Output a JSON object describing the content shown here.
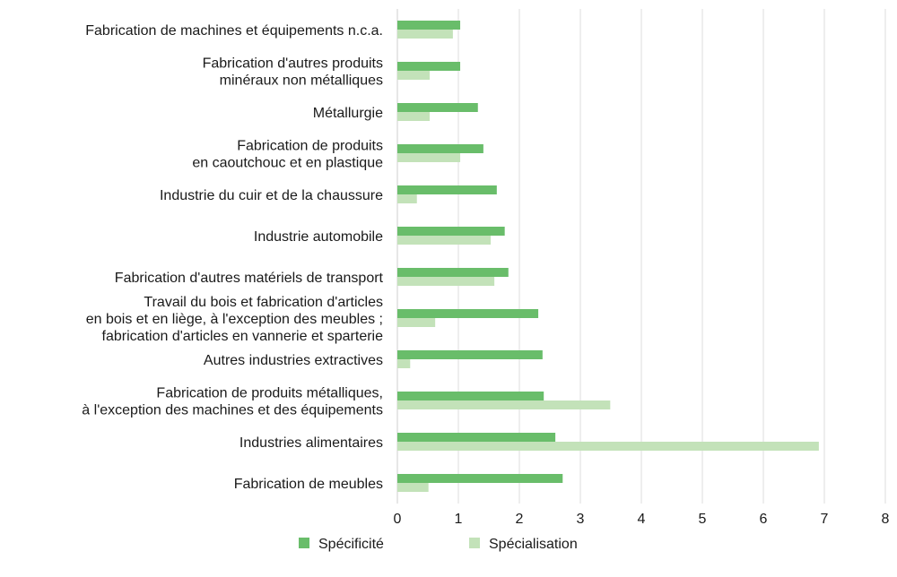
{
  "chart_data": {
    "type": "bar",
    "orientation": "horizontal",
    "title": "",
    "xlabel": "",
    "ylabel": "",
    "xlim": [
      0,
      8
    ],
    "xticks": [
      "0",
      "1",
      "2",
      "3",
      "4",
      "5",
      "6",
      "7",
      "8"
    ],
    "grid": true,
    "legend_position": "bottom",
    "categories": [
      [
        "Fabrication de machines et équipements n.c.a."
      ],
      [
        "Fabrication d'autres produits",
        "minéraux non métalliques"
      ],
      [
        "Métallurgie"
      ],
      [
        "Fabrication de produits",
        "en caoutchouc et en plastique"
      ],
      [
        "Industrie du cuir et de la chaussure"
      ],
      [
        "Industrie automobile"
      ],
      [
        "Fabrication d'autres matériels de transport"
      ],
      [
        "Travail du bois et fabrication d'articles",
        "en bois et en liège, à l'exception des meubles ;",
        "fabrication d'articles en vannerie et sparterie"
      ],
      [
        "Autres industries extractives"
      ],
      [
        "Fabrication de produits métalliques,",
        "à l'exception des machines et des équipements"
      ],
      [
        "Industries alimentaires"
      ],
      [
        "Fabrication de meubles"
      ]
    ],
    "series": [
      {
        "name": "Spécificité",
        "color": "#69bd6a",
        "values": [
          1.03,
          1.03,
          1.32,
          1.41,
          1.63,
          1.76,
          1.82,
          2.31,
          2.38,
          2.4,
          2.59,
          2.71
        ]
      },
      {
        "name": "Spécialisation",
        "color": "#c3e2b9",
        "values": [
          0.91,
          0.53,
          0.53,
          1.03,
          0.32,
          1.53,
          1.59,
          0.62,
          0.21,
          3.49,
          6.91,
          0.51
        ]
      }
    ]
  }
}
